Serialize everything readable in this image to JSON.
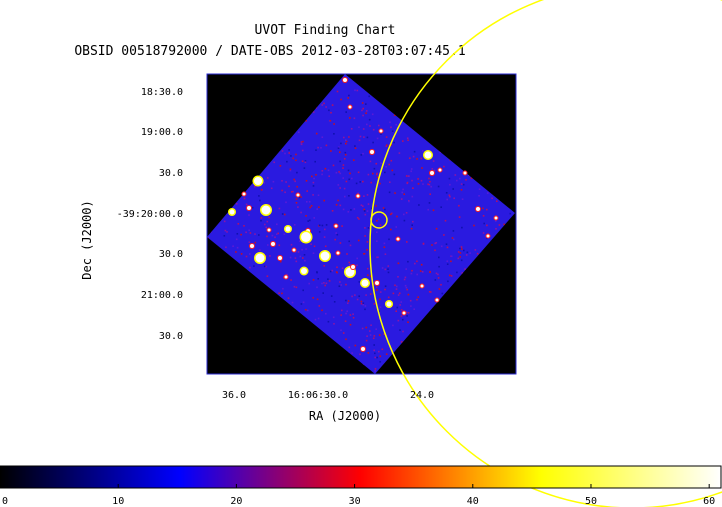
{
  "chart_data": {
    "type": "heatmap",
    "title": "UVOT Finding Chart",
    "subtitle": "OBSID 00518792000 / DATE-OBS 2012-03-28T03:07:45.1",
    "xlabel": "RA (J2000)",
    "ylabel": "Dec (J2000)",
    "x_ticks": [
      "36.0",
      "16:06:30.0",
      "24.0"
    ],
    "y_ticks": [
      "18:30.0",
      "19:00.0",
      "30.0",
      "-39:20:00.0",
      "30.0",
      "21:00.0",
      "30.0"
    ],
    "colorbar": {
      "min": 0,
      "max": 61,
      "ticks": [
        0,
        10,
        20,
        30,
        40,
        50,
        60
      ],
      "colors": [
        "#000000",
        "#0000ff",
        "#ff0000",
        "#ffff00",
        "#ffffff"
      ]
    },
    "grid": false,
    "legend": "none"
  }
}
